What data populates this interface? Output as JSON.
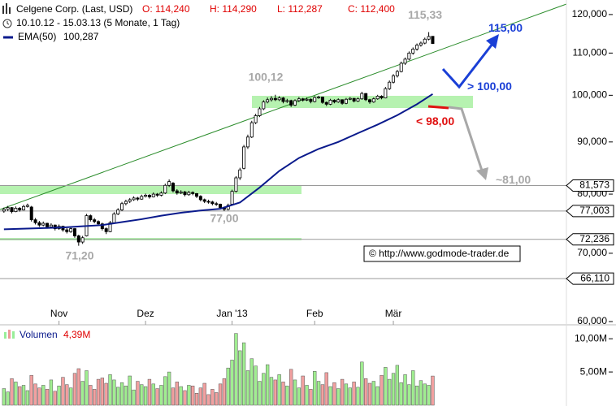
{
  "chart_data": {
    "type": "candlestick",
    "title": "Celgene Corp. (Last, USD)",
    "ohlc_labels": [
      "O: 114,240",
      "H: 114,290",
      "L: 112,287",
      "C: 112,400"
    ],
    "subtitle": "10.10.12 - 15.03.13 (5 Monate, 1 Tag)",
    "log_scale": true,
    "xlim": [
      -1,
      143
    ],
    "ylim": [
      60,
      124
    ],
    "yticks": [
      {
        "value": 120,
        "label": "120,000"
      },
      {
        "value": 110,
        "label": "110,000"
      },
      {
        "value": 100,
        "label": "100,000"
      },
      {
        "value": 90,
        "label": "90,000"
      },
      {
        "value": 80,
        "label": "80,000"
      },
      {
        "value": 70,
        "label": "70,000"
      },
      {
        "value": 60,
        "label": "60,000"
      }
    ],
    "xticks": [
      {
        "value": 14,
        "label": "Nov"
      },
      {
        "value": 36,
        "label": "Dez"
      },
      {
        "value": 58,
        "label": "Jan '13"
      },
      {
        "value": 79,
        "label": "Feb"
      },
      {
        "value": 99,
        "label": "Mär"
      }
    ],
    "candles": [
      [
        77.0,
        77.6,
        76.7,
        77.3
      ],
      [
        77.3,
        77.9,
        77.0,
        77.6
      ],
      [
        77.6,
        77.7,
        76.6,
        76.9
      ],
      [
        76.9,
        77.8,
        76.8,
        77.5
      ],
      [
        77.5,
        77.7,
        76.9,
        77.2
      ],
      [
        77.2,
        78.1,
        77.1,
        77.8
      ],
      [
        77.8,
        78.3,
        77.6,
        78.0
      ],
      [
        77.7,
        77.9,
        75.2,
        75.5
      ],
      [
        75.5,
        75.8,
        74.7,
        75.0
      ],
      [
        75.0,
        75.3,
        74.3,
        74.6
      ],
      [
        74.6,
        75.2,
        74.4,
        74.9
      ],
      [
        74.9,
        75.0,
        74.0,
        74.3
      ],
      [
        74.3,
        74.9,
        74.1,
        74.6
      ],
      [
        74.6,
        74.7,
        73.7,
        74.0
      ],
      [
        74.0,
        74.7,
        73.8,
        74.4
      ],
      [
        74.4,
        74.5,
        73.5,
        73.8
      ],
      [
        73.8,
        74.1,
        73.2,
        73.5
      ],
      [
        73.5,
        74.3,
        73.3,
        74.0
      ],
      [
        74.0,
        74.1,
        72.5,
        72.8
      ],
      [
        72.8,
        73.0,
        71.2,
        71.8
      ],
      [
        71.8,
        72.8,
        71.5,
        72.5
      ],
      [
        72.8,
        76.5,
        72.7,
        76.2
      ],
      [
        76.2,
        76.4,
        75.2,
        75.5
      ],
      [
        75.5,
        75.8,
        74.9,
        75.2
      ],
      [
        75.2,
        75.4,
        74.5,
        74.8
      ],
      [
        74.8,
        75.0,
        73.7,
        74.0
      ],
      [
        74.0,
        74.2,
        73.1,
        73.5
      ],
      [
        73.5,
        75.3,
        73.4,
        75.0
      ],
      [
        75.0,
        76.8,
        74.9,
        76.5
      ],
      [
        76.5,
        77.5,
        76.3,
        77.2
      ],
      [
        77.2,
        78.6,
        77.0,
        78.3
      ],
      [
        78.3,
        79.0,
        78.0,
        78.7
      ],
      [
        78.7,
        79.3,
        78.4,
        79.0
      ],
      [
        79.0,
        79.6,
        78.8,
        79.3
      ],
      [
        79.3,
        79.5,
        78.8,
        79.1
      ],
      [
        79.1,
        79.9,
        79.0,
        79.6
      ],
      [
        79.6,
        80.1,
        79.4,
        79.8
      ],
      [
        79.8,
        80.0,
        79.2,
        79.5
      ],
      [
        79.5,
        80.3,
        79.4,
        80.0
      ],
      [
        80.0,
        80.2,
        79.5,
        79.8
      ],
      [
        79.8,
        80.5,
        79.6,
        80.2
      ],
      [
        80.2,
        81.9,
        80.0,
        81.6
      ],
      [
        81.6,
        82.7,
        81.3,
        82.3
      ],
      [
        82.0,
        82.2,
        80.3,
        80.6
      ],
      [
        80.6,
        80.9,
        79.9,
        80.2
      ],
      [
        80.2,
        80.7,
        80.0,
        80.4
      ],
      [
        80.4,
        80.6,
        79.6,
        79.9
      ],
      [
        79.9,
        80.6,
        79.7,
        80.3
      ],
      [
        80.3,
        80.5,
        79.8,
        80.1
      ],
      [
        80.1,
        80.2,
        79.3,
        79.6
      ],
      [
        79.6,
        79.8,
        78.7,
        79.0
      ],
      [
        79.0,
        79.2,
        78.4,
        78.7
      ],
      [
        78.7,
        79.0,
        78.3,
        78.6
      ],
      [
        78.6,
        78.8,
        78.0,
        78.3
      ],
      [
        78.3,
        78.6,
        77.9,
        78.2
      ],
      [
        78.2,
        78.3,
        77.3,
        77.6
      ],
      [
        77.6,
        77.8,
        77.0,
        77.3
      ],
      [
        77.3,
        78.3,
        77.1,
        78.0
      ],
      [
        78.2,
        80.8,
        78.0,
        80.5
      ],
      [
        80.5,
        83.3,
        80.3,
        83.0
      ],
      [
        83.0,
        84.9,
        82.6,
        84.5
      ],
      [
        84.8,
        89.4,
        84.6,
        89.0
      ],
      [
        89.0,
        91.5,
        88.6,
        91.0
      ],
      [
        91.0,
        94.4,
        90.8,
        94.0
      ],
      [
        94.0,
        95.9,
        93.7,
        95.5
      ],
      [
        95.5,
        97.4,
        95.2,
        97.0
      ],
      [
        97.0,
        98.9,
        96.7,
        98.5
      ],
      [
        98.5,
        99.5,
        98.2,
        99.0
      ],
      [
        99.0,
        99.8,
        98.6,
        99.3
      ],
      [
        99.3,
        100.12,
        98.7,
        99.0
      ],
      [
        99.0,
        99.8,
        98.7,
        99.4
      ],
      [
        99.4,
        99.6,
        98.2,
        98.6
      ],
      [
        98.6,
        99.2,
        98.3,
        98.8
      ],
      [
        98.8,
        99.0,
        97.4,
        97.8
      ],
      [
        97.8,
        99.1,
        97.6,
        98.8
      ],
      [
        98.8,
        99.6,
        98.5,
        99.2
      ],
      [
        99.2,
        99.4,
        98.6,
        98.9
      ],
      [
        98.9,
        99.5,
        98.7,
        99.1
      ],
      [
        99.1,
        99.3,
        98.2,
        98.6
      ],
      [
        98.6,
        99.8,
        98.4,
        99.5
      ],
      [
        99.5,
        99.9,
        99.2,
        99.6
      ],
      [
        99.6,
        99.7,
        98.1,
        98.4
      ],
      [
        98.4,
        98.6,
        97.6,
        98.0
      ],
      [
        98.0,
        99.2,
        97.8,
        98.9
      ],
      [
        98.9,
        99.1,
        98.2,
        98.5
      ],
      [
        98.5,
        99.3,
        98.3,
        99.0
      ],
      [
        99.0,
        99.1,
        97.9,
        98.2
      ],
      [
        98.2,
        99.4,
        98.0,
        99.1
      ],
      [
        99.1,
        99.6,
        98.9,
        99.3
      ],
      [
        99.3,
        99.4,
        98.4,
        98.7
      ],
      [
        98.7,
        99.5,
        98.5,
        99.2
      ],
      [
        99.2,
        100.8,
        99.0,
        100.4
      ],
      [
        100.4,
        100.5,
        98.7,
        99.0
      ],
      [
        99.0,
        99.2,
        98.1,
        98.5
      ],
      [
        98.5,
        99.5,
        98.3,
        99.2
      ],
      [
        99.2,
        100.1,
        99.0,
        99.8
      ],
      [
        99.8,
        100.0,
        99.1,
        99.4
      ],
      [
        99.4,
        101.9,
        99.3,
        101.5
      ],
      [
        101.5,
        103.4,
        101.2,
        103.0
      ],
      [
        103.0,
        104.9,
        102.7,
        104.5
      ],
      [
        104.5,
        105.9,
        104.1,
        105.5
      ],
      [
        105.5,
        107.9,
        105.3,
        107.5
      ],
      [
        107.5,
        108.9,
        107.1,
        108.5
      ],
      [
        108.5,
        110.4,
        108.2,
        110.0
      ],
      [
        110.0,
        111.4,
        109.6,
        111.0
      ],
      [
        111.0,
        112.4,
        110.6,
        112.0
      ],
      [
        112.0,
        112.9,
        111.6,
        112.5
      ],
      [
        112.5,
        113.9,
        112.2,
        113.5
      ],
      [
        113.5,
        115.33,
        113.2,
        114.2
      ],
      [
        114.24,
        114.29,
        112.287,
        112.4
      ]
    ],
    "ema": {
      "name": "EMA(50)",
      "last_label": "100,287",
      "color": "#0a1a8c",
      "x": [
        0,
        5,
        10,
        15,
        20,
        25,
        30,
        35,
        40,
        45,
        50,
        55,
        60,
        65,
        70,
        75,
        80,
        85,
        90,
        95,
        100,
        105,
        109
      ],
      "values": [
        73.9,
        74.0,
        74.1,
        74.2,
        74.4,
        74.6,
        75.1,
        75.6,
        76.2,
        76.7,
        77.1,
        77.4,
        78.5,
        81.2,
        84.3,
        86.8,
        88.6,
        90.0,
        91.8,
        93.6,
        95.6,
        98.0,
        100.287
      ]
    },
    "levels": [
      {
        "value": 81.573,
        "label": "81,573"
      },
      {
        "value": 77.003,
        "label": "77,003"
      },
      {
        "value": 72.236,
        "label": "72,236"
      },
      {
        "value": 66.11,
        "label": "66,110"
      }
    ],
    "annotations": [
      {
        "value": 115.33,
        "label": "115,33"
      },
      {
        "value": 100.12,
        "label": "100,12"
      },
      {
        "value": 77.0,
        "label": "77,00"
      },
      {
        "value": 71.2,
        "label": "71,20"
      }
    ],
    "targets": [
      {
        "value": 115,
        "label": "115,00",
        "color": "#1a3fd6"
      },
      {
        "value": 100,
        "label": "> 100,00",
        "color": "#1a3fd6"
      },
      {
        "value": 98,
        "label": "< 98,00",
        "color": "#e01010"
      },
      {
        "value": 81,
        "label": "~81,00",
        "color": "#a8a8a8"
      }
    ],
    "volume": {
      "name": "Volumen",
      "last_label": "4,39M",
      "up_color": "#a0ee90",
      "down_color": "#f2a0a0",
      "ylim": [
        0,
        12.1
      ],
      "yticks": [
        {
          "value": 10,
          "label": "10,00M"
        },
        {
          "value": 5,
          "label": "5,00M"
        }
      ],
      "values": [
        2.5,
        2.0,
        4.0,
        3.5,
        2.8,
        3.0,
        2.2,
        4.5,
        3.2,
        2.6,
        3.0,
        2.4,
        3.8,
        2.1,
        2.9,
        4.2,
        3.1,
        2.6,
        4.8,
        5.5,
        3.6,
        5.2,
        3.0,
        2.4,
        3.9,
        4.1,
        3.3,
        4.6,
        3.8,
        2.7,
        3.4,
        2.9,
        4.4,
        2.3,
        3.6,
        3.1,
        2.8,
        3.9,
        3.2,
        2.5,
        3.0,
        4.3,
        5.0,
        2.6,
        3.5,
        2.8,
        2.2,
        3.0,
        2.9,
        1.8,
        2.6,
        3.3,
        1.6,
        2.4,
        1.9,
        3.2,
        4.0,
        5.6,
        6.8,
        10.8,
        8.2,
        9.4,
        5.2,
        7.0,
        5.9,
        3.6,
        4.8,
        6.1,
        4.2,
        3.8,
        4.6,
        3.5,
        2.9,
        5.4,
        3.8,
        2.6,
        4.4,
        3.0,
        2.4,
        5.1,
        3.6,
        3.1,
        4.9,
        2.8,
        3.4,
        2.5,
        3.9,
        3.2,
        2.6,
        3.5,
        2.7,
        6.5,
        4.0,
        3.3,
        3.6,
        2.8,
        4.5,
        5.7,
        3.9,
        4.8,
        6.0,
        3.4,
        4.6,
        3.1,
        5.2,
        2.9,
        3.7,
        3.2,
        3.0,
        4.39
      ]
    },
    "copyright": "© http://www.godmode-trader.de"
  }
}
